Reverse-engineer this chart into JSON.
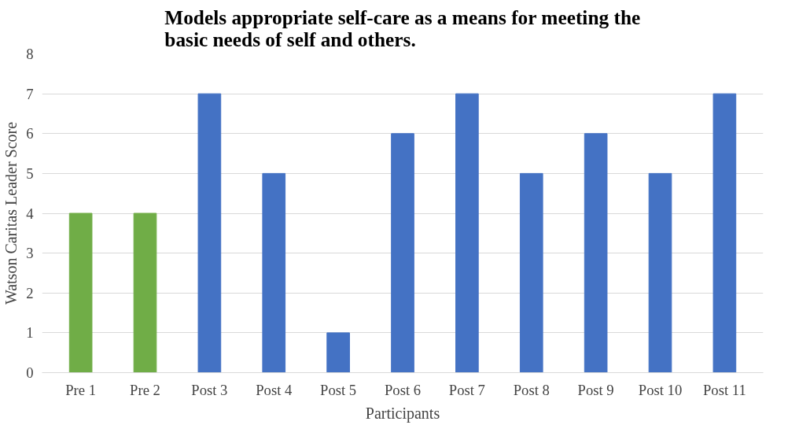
{
  "chart_data": {
    "type": "bar",
    "title": "Models appropriate self-care as a means for meeting the\nbasic needs of self and others.",
    "xlabel": "Participants",
    "ylabel": "Watson Caritas Leader Score",
    "categories": [
      "Pre 1",
      "Pre 2",
      "Post 3",
      "Post 4",
      "Post 5",
      "Post 6",
      "Post 7",
      "Post 8",
      "Post 9",
      "Post 10",
      "Post 11"
    ],
    "values": [
      4,
      4,
      7,
      5,
      1,
      6,
      7,
      5,
      6,
      5,
      7
    ],
    "colors": [
      "#70ad47",
      "#70ad47",
      "#4472c4",
      "#4472c4",
      "#4472c4",
      "#4472c4",
      "#4472c4",
      "#4472c4",
      "#4472c4",
      "#4472c4",
      "#4472c4"
    ],
    "ylim": [
      0,
      8
    ],
    "yticks": [
      0,
      1,
      2,
      3,
      4,
      5,
      6,
      7,
      8
    ],
    "grid": "y"
  }
}
